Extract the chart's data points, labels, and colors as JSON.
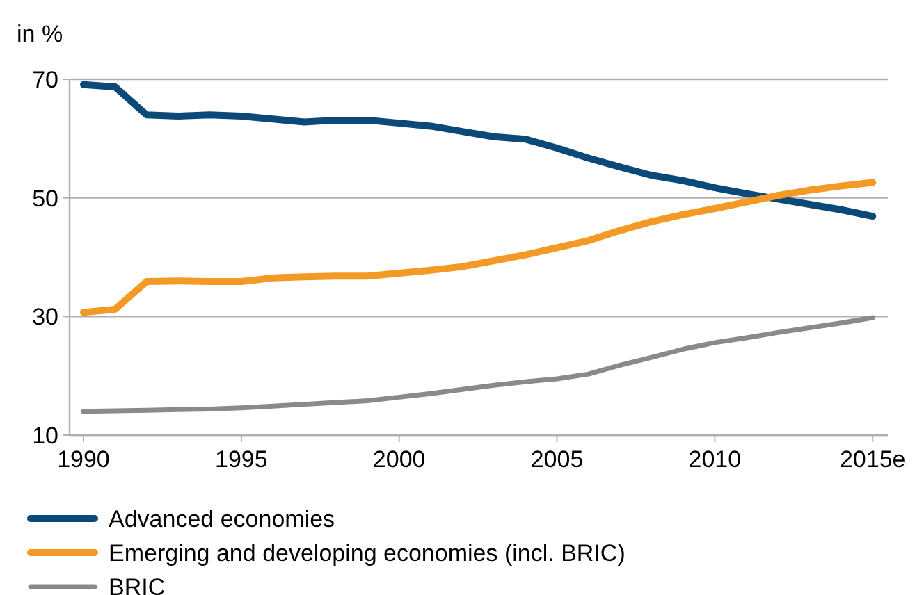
{
  "chart_data": {
    "type": "line",
    "ylabel": "in %",
    "x": [
      1990,
      1991,
      1992,
      1993,
      1994,
      1995,
      1996,
      1997,
      1998,
      1999,
      2000,
      2001,
      2002,
      2003,
      2004,
      2005,
      2006,
      2007,
      2008,
      2009,
      2010,
      2011,
      2012,
      2013,
      2014,
      2015
    ],
    "series": [
      {
        "name": "Advanced economies",
        "color": "#0b4a78",
        "values": [
          69.1,
          68.7,
          64.0,
          63.8,
          64.0,
          63.8,
          63.3,
          62.8,
          63.1,
          63.1,
          62.6,
          62.1,
          61.2,
          60.3,
          59.9,
          58.4,
          56.7,
          55.2,
          53.8,
          52.9,
          51.7,
          50.7,
          49.8,
          48.9,
          48.0,
          46.9
        ]
      },
      {
        "name": "Emerging and developing economies (incl. BRIC)",
        "color": "#f39a26",
        "values": [
          30.7,
          31.2,
          35.9,
          36.0,
          35.9,
          35.9,
          36.5,
          36.7,
          36.8,
          36.8,
          37.3,
          37.8,
          38.4,
          39.4,
          40.4,
          41.6,
          42.8,
          44.5,
          46.0,
          47.2,
          48.2,
          49.3,
          50.4,
          51.3,
          52.0,
          52.6
        ]
      },
      {
        "name": "BRIC",
        "color": "#8a8a8a",
        "values": [
          14.0,
          14.1,
          14.2,
          14.3,
          14.4,
          14.6,
          14.9,
          15.2,
          15.5,
          15.8,
          16.4,
          17.0,
          17.7,
          18.4,
          19.0,
          19.5,
          20.3,
          21.8,
          23.1,
          24.5,
          25.6,
          26.4,
          27.3,
          28.1,
          28.9,
          29.8
        ]
      }
    ],
    "xlim": [
      1989.56,
      2015.48
    ],
    "xticks": [
      1990,
      1995,
      2000,
      2005,
      2010,
      {
        "value": 2015,
        "label": "2015e"
      }
    ],
    "ylim": [
      10,
      70
    ],
    "yticks": [
      10,
      30,
      50,
      70
    ],
    "grid": "y",
    "legend": "bottom left",
    "marker": "none",
    "line_style": "solid"
  }
}
